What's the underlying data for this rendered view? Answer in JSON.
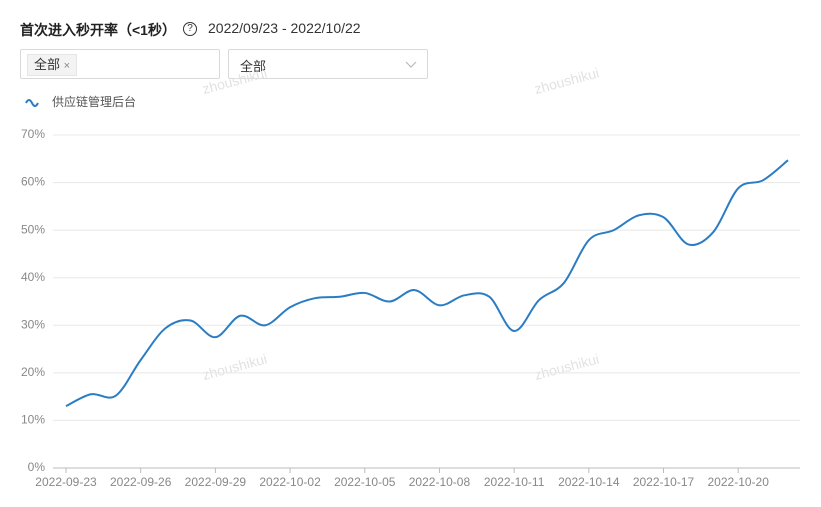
{
  "header": {
    "title": "首次进入秒开率（<1秒）",
    "date_range": "2022/09/23 - 2022/10/22"
  },
  "filters": {
    "tag": "全部",
    "dropdown": "全部"
  },
  "watermarks": [
    "zhoushikui",
    "zhoushikui",
    "zhoushikui",
    "zhoushikui"
  ],
  "chart_data": {
    "type": "line",
    "x": [
      "2022-09-23",
      null,
      null,
      "2022-09-26",
      null,
      null,
      "2022-09-29",
      null,
      null,
      "2022-10-02",
      null,
      null,
      "2022-10-05",
      null,
      null,
      "2022-10-08",
      null,
      null,
      "2022-10-11",
      null,
      null,
      "2022-10-14",
      null,
      null,
      "2022-10-17",
      null,
      null,
      "2022-10-20",
      null,
      null
    ],
    "series": [
      {
        "name": "供应链管理后台",
        "color": "#2a7dc4",
        "values": [
          13,
          15.5,
          15.2,
          22.7,
          29.4,
          31,
          27.5,
          32,
          30,
          33.8,
          35.7,
          36,
          36.8,
          35,
          37.4,
          34.2,
          36.3,
          36,
          28.8,
          35.3,
          38.9,
          47.9,
          50,
          53.1,
          52.7,
          47,
          49.6,
          58.8,
          60.5,
          64.7
        ]
      }
    ],
    "ylim": [
      0,
      70
    ],
    "yticks": [
      {
        "value": 0,
        "label": "0%"
      },
      {
        "value": 10,
        "label": "10%"
      },
      {
        "value": 20,
        "label": "20%"
      },
      {
        "value": 30,
        "label": "30%"
      },
      {
        "value": 40,
        "label": "40%"
      },
      {
        "value": 50,
        "label": "50%"
      },
      {
        "value": 60,
        "label": "60%"
      },
      {
        "value": 70,
        "label": "70%"
      }
    ],
    "grid": true
  }
}
